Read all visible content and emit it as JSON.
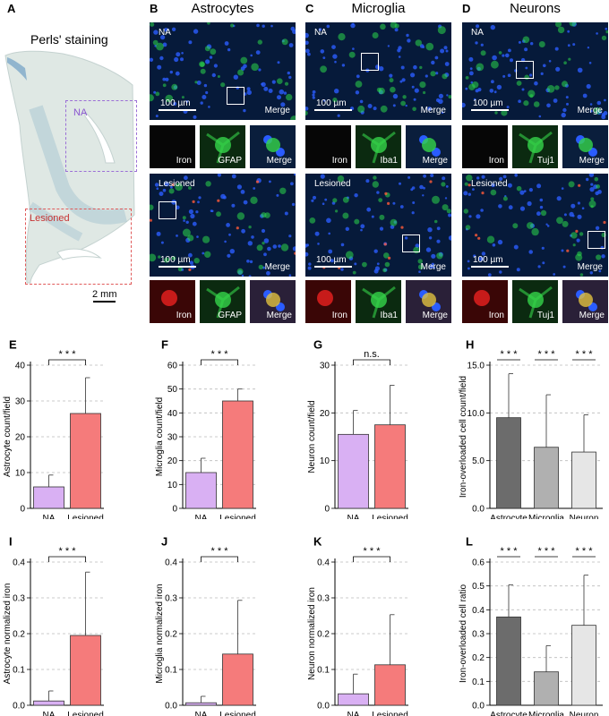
{
  "panel_a": {
    "letter": "A",
    "title": "Perls' staining",
    "region_na": "NA",
    "region_lesioned": "Lesioned",
    "scale_bar": "2 mm"
  },
  "micro_panels": [
    {
      "letter": "B",
      "title": "Astrocytes",
      "top_tag": "NA",
      "bottom_tag": "Lesioned",
      "scale": "100 µm",
      "merge": "Merge",
      "inset_labels": [
        "Iron",
        "GFAP",
        "Merge"
      ]
    },
    {
      "letter": "C",
      "title": "Microglia",
      "top_tag": "NA",
      "bottom_tag": "Lesioned",
      "scale": "100 µm",
      "merge": "Merge",
      "inset_labels": [
        "Iron",
        "Iba1",
        "Merge"
      ]
    },
    {
      "letter": "D",
      "title": "Neurons",
      "top_tag": "NA",
      "bottom_tag": "Lesioned",
      "scale": "100 µm",
      "merge": "Merge",
      "inset_labels": [
        "Iron",
        "Tuj1",
        "Merge"
      ]
    }
  ],
  "colors": {
    "na": "#d9b0f3",
    "lesioned": "#f57b7b",
    "astrocyte": "#6c6c6c",
    "microglia": "#b0b0b0",
    "neuron": "#e6e6e6",
    "perls_stain": "#b5cfd8",
    "na_box": "#9b6fd6",
    "lesioned_box": "#e05a5a"
  },
  "chart_data": [
    {
      "letter": "E",
      "type": "bar",
      "categories": [
        "NA",
        "Lesioned"
      ],
      "values": [
        6,
        26.5
      ],
      "errors": [
        3.3,
        10
      ],
      "ylabel": "Astrocyte count/field",
      "ylim": [
        0,
        40
      ],
      "yticks": [
        0,
        10,
        20,
        30,
        40
      ],
      "tick_decimals": 0,
      "sig": [
        "* * *"
      ],
      "colors": [
        "#d9b0f3",
        "#f57b7b"
      ]
    },
    {
      "letter": "F",
      "type": "bar",
      "categories": [
        "NA",
        "Lesioned"
      ],
      "values": [
        15,
        45
      ],
      "errors": [
        6,
        5
      ],
      "ylabel": "Microglia count/field",
      "ylim": [
        0,
        60
      ],
      "yticks": [
        0,
        10,
        20,
        30,
        40,
        50,
        60
      ],
      "tick_decimals": 0,
      "sig": [
        "* * *"
      ],
      "colors": [
        "#d9b0f3",
        "#f57b7b"
      ]
    },
    {
      "letter": "G",
      "type": "bar",
      "categories": [
        "NA",
        "Lesioned"
      ],
      "values": [
        15.5,
        17.5
      ],
      "errors": [
        5,
        8.3
      ],
      "ylabel": "Neuron count/field",
      "ylim": [
        0,
        30
      ],
      "yticks": [
        0,
        10,
        20,
        30
      ],
      "tick_decimals": 0,
      "sig": [
        "n.s."
      ],
      "colors": [
        "#d9b0f3",
        "#f57b7b"
      ]
    },
    {
      "letter": "H",
      "type": "bar",
      "categories": [
        "Astrocyte",
        "Microglia",
        "Neuron"
      ],
      "values": [
        9.5,
        6.4,
        5.9
      ],
      "errors": [
        4.6,
        5.5,
        3.9
      ],
      "ylabel": "Iron-overloaded cell count/field",
      "ylim": [
        0,
        15
      ],
      "yticks": [
        0,
        5,
        10,
        15
      ],
      "tick_decimals": 1,
      "sig": [
        "* * *",
        "* * *",
        "* * *"
      ],
      "colors": [
        "#6c6c6c",
        "#b0b0b0",
        "#e6e6e6"
      ]
    },
    {
      "letter": "I",
      "type": "bar",
      "categories": [
        "NA",
        "Lesioned"
      ],
      "values": [
        0.012,
        0.195
      ],
      "errors": [
        0.028,
        0.177
      ],
      "ylabel": "Astrocyte normalized iron",
      "ylim": [
        0,
        0.4
      ],
      "yticks": [
        0,
        0.1,
        0.2,
        0.3,
        0.4
      ],
      "tick_decimals": 1,
      "sig": [
        "* * *"
      ],
      "colors": [
        "#d9b0f3",
        "#f57b7b"
      ]
    },
    {
      "letter": "J",
      "type": "bar",
      "categories": [
        "NA",
        "Lesioned"
      ],
      "values": [
        0.007,
        0.143
      ],
      "errors": [
        0.018,
        0.15
      ],
      "ylabel": "Microglia normalized iron",
      "ylim": [
        0,
        0.4
      ],
      "yticks": [
        0,
        0.1,
        0.2,
        0.3,
        0.4
      ],
      "tick_decimals": 1,
      "sig": [
        "* * *"
      ],
      "colors": [
        "#d9b0f3",
        "#f57b7b"
      ]
    },
    {
      "letter": "K",
      "type": "bar",
      "categories": [
        "NA",
        "Lesioned"
      ],
      "values": [
        0.032,
        0.113
      ],
      "errors": [
        0.055,
        0.14
      ],
      "ylabel": "Neuron normalized iron",
      "ylim": [
        0,
        0.4
      ],
      "yticks": [
        0,
        0.1,
        0.2,
        0.3,
        0.4
      ],
      "tick_decimals": 1,
      "sig": [
        "* * *"
      ],
      "colors": [
        "#d9b0f3",
        "#f57b7b"
      ]
    },
    {
      "letter": "L",
      "type": "bar",
      "categories": [
        "Astrocyte",
        "Microglia",
        "Neuron"
      ],
      "values": [
        0.37,
        0.14,
        0.335
      ],
      "errors": [
        0.135,
        0.11,
        0.21
      ],
      "ylabel": "Iron-overloaded cell ratio",
      "ylim": [
        0,
        0.6
      ],
      "yticks": [
        0,
        0.1,
        0.2,
        0.3,
        0.4,
        0.5,
        0.6
      ],
      "tick_decimals": 1,
      "sig": [
        "* * *",
        "* * *",
        "* * *"
      ],
      "colors": [
        "#6c6c6c",
        "#b0b0b0",
        "#e6e6e6"
      ]
    }
  ]
}
